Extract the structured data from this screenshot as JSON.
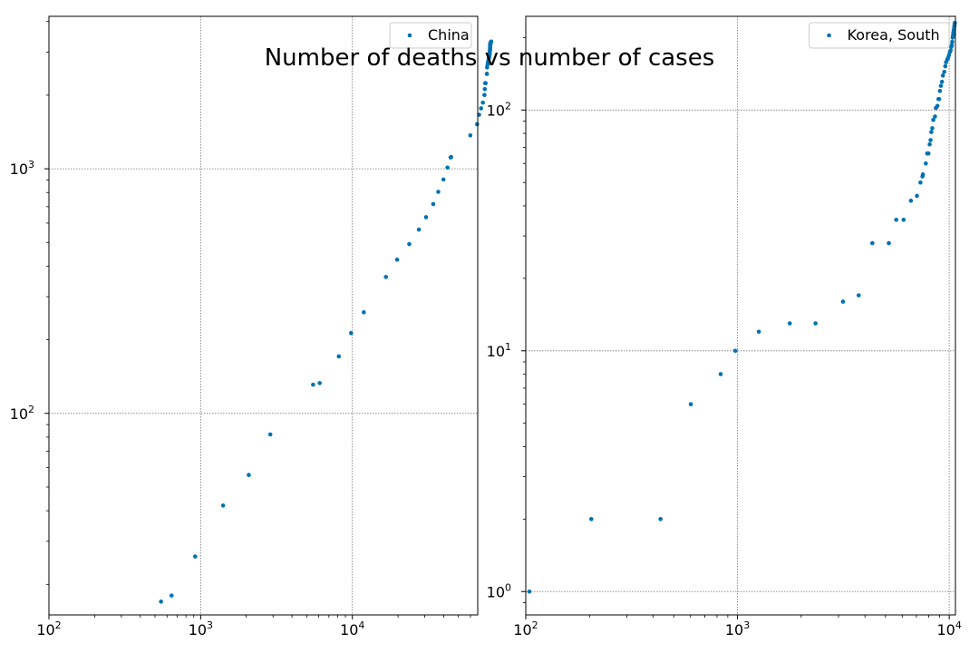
{
  "figure": {
    "suptitle": "Number of deaths vs number of cases",
    "marker_color": "#0072b2"
  },
  "chart_data": [
    {
      "type": "scatter",
      "title": "",
      "xlabel": "",
      "ylabel": "",
      "xscale": "log",
      "yscale": "log",
      "xlim": [
        100,
        67000
      ],
      "ylim": [
        15,
        4200
      ],
      "grid": true,
      "legend_position": "top-right",
      "x_ticks": [
        100,
        1000,
        10000
      ],
      "x_tick_labels": [
        {
          "base": "10",
          "exp": "2"
        },
        {
          "base": "10",
          "exp": "3"
        },
        {
          "base": "10",
          "exp": "4"
        }
      ],
      "y_ticks": [
        100,
        1000
      ],
      "y_tick_labels": [
        {
          "base": "10",
          "exp": "2"
        },
        {
          "base": "10",
          "exp": "3"
        }
      ],
      "series": [
        {
          "name": "China",
          "color": "#0072b2",
          "points": [
            [
              548,
              17
            ],
            [
              643,
              18
            ],
            [
              920,
              26
            ],
            [
              1406,
              42
            ],
            [
              2075,
              56
            ],
            [
              2877,
              82
            ],
            [
              5509,
              131
            ],
            [
              6087,
              133
            ],
            [
              8141,
              171
            ],
            [
              9802,
              213
            ],
            [
              11891,
              259
            ],
            [
              16630,
              361
            ],
            [
              19716,
              425
            ],
            [
              23707,
              492
            ],
            [
              27440,
              564
            ],
            [
              30587,
              634
            ],
            [
              34110,
              717
            ],
            [
              36814,
              805
            ],
            [
              39829,
              904
            ],
            [
              42354,
              1011
            ],
            [
              44386,
              1112
            ],
            [
              44759,
              1117
            ],
            [
              59895,
              1369
            ],
            [
              66358,
              1521
            ],
            [
              68413,
              1663
            ],
            [
              70513,
              1766
            ],
            [
              72434,
              1864
            ],
            [
              74211,
              2003
            ],
            [
              74619,
              2116
            ],
            [
              75077,
              2238
            ],
            [
              75550,
              2238
            ],
            [
              77001,
              2443
            ],
            [
              77022,
              2445
            ],
            [
              77241,
              2595
            ],
            [
              77754,
              2665
            ],
            [
              78166,
              2717
            ],
            [
              78600,
              2746
            ],
            [
              78928,
              2790
            ],
            [
              79356,
              2837
            ],
            [
              79932,
              2872
            ],
            [
              80136,
              2914
            ],
            [
              80261,
              2947
            ],
            [
              80386,
              2983
            ],
            [
              80537,
              3015
            ],
            [
              80690,
              3044
            ],
            [
              80770,
              3072
            ],
            [
              80823,
              3100
            ],
            [
              80860,
              3123
            ],
            [
              80887,
              3139
            ],
            [
              80921,
              3161
            ],
            [
              80932,
              3172
            ],
            [
              80945,
              3180
            ],
            [
              80977,
              3193
            ],
            [
              81003,
              3203
            ],
            [
              81033,
              3217
            ],
            [
              81058,
              3230
            ],
            [
              81102,
              3241
            ],
            [
              81156,
              3249
            ],
            [
              81250,
              3253
            ],
            [
              81305,
              3259
            ],
            [
              81435,
              3274
            ],
            [
              81498,
              3274
            ],
            [
              81591,
              3281
            ],
            [
              81661,
              3285
            ],
            [
              81782,
              3291
            ],
            [
              81897,
              3296
            ],
            [
              81999,
              3299
            ],
            [
              82122,
              3304
            ],
            [
              82198,
              3308
            ],
            [
              82279,
              3309
            ]
          ]
        }
      ]
    },
    {
      "type": "scatter",
      "title": "",
      "xlabel": "",
      "ylabel": "",
      "xscale": "log",
      "yscale": "log",
      "xlim": [
        100,
        10700
      ],
      "ylim": [
        0.8,
        245
      ],
      "grid": true,
      "legend_position": "top-right",
      "x_ticks": [
        100,
        1000,
        10000
      ],
      "x_tick_labels": [
        {
          "base": "10",
          "exp": "2"
        },
        {
          "base": "10",
          "exp": "3"
        },
        {
          "base": "10",
          "exp": "4"
        }
      ],
      "y_ticks": [
        1,
        10,
        100
      ],
      "y_tick_labels": [
        {
          "base": "10",
          "exp": "0"
        },
        {
          "base": "10",
          "exp": "1"
        },
        {
          "base": "10",
          "exp": "2"
        }
      ],
      "series": [
        {
          "name": "Korea, South",
          "color": "#0072b2",
          "points": [
            [
              104,
              1
            ],
            [
              204,
              2
            ],
            [
              433,
              2
            ],
            [
              602,
              6
            ],
            [
              833,
              8
            ],
            [
              977,
              10
            ],
            [
              1261,
              12
            ],
            [
              1766,
              13
            ],
            [
              2337,
              13
            ],
            [
              3150,
              16
            ],
            [
              3736,
              17
            ],
            [
              4335,
              28
            ],
            [
              5186,
              28
            ],
            [
              5621,
              35
            ],
            [
              6088,
              35
            ],
            [
              6593,
              42
            ],
            [
              7041,
              44
            ],
            [
              7313,
              50
            ],
            [
              7478,
              53
            ],
            [
              7513,
              54
            ],
            [
              7755,
              60
            ],
            [
              7869,
              66
            ],
            [
              7979,
              66
            ],
            [
              8086,
              72
            ],
            [
              8162,
              75
            ],
            [
              8236,
              81
            ],
            [
              8320,
              84
            ],
            [
              8413,
              91
            ],
            [
              8565,
              94
            ],
            [
              8652,
              102
            ],
            [
              8799,
              104
            ],
            [
              8897,
              111
            ],
            [
              8961,
              111
            ],
            [
              9037,
              120
            ],
            [
              9137,
              126
            ],
            [
              9241,
              131
            ],
            [
              9332,
              139
            ],
            [
              9478,
              144
            ],
            [
              9583,
              152
            ],
            [
              9661,
              158
            ],
            [
              9786,
              162
            ],
            [
              9887,
              165
            ],
            [
              9976,
              169
            ],
            [
              10062,
              174
            ],
            [
              10156,
              177
            ],
            [
              10237,
              183
            ],
            [
              10284,
              186
            ],
            [
              10331,
              192
            ],
            [
              10384,
              200
            ],
            [
              10423,
              204
            ],
            [
              10450,
              208
            ],
            [
              10480,
              211
            ],
            [
              10512,
              214
            ],
            [
              10537,
              217
            ],
            [
              10564,
              222
            ],
            [
              10591,
              225
            ],
            [
              10613,
              229
            ],
            [
              10635,
              230
            ]
          ]
        }
      ]
    }
  ]
}
